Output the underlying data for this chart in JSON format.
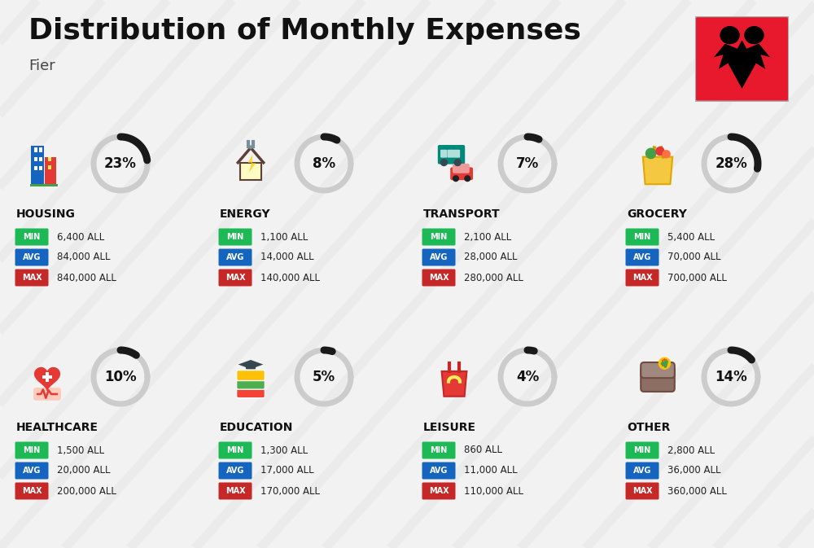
{
  "title": "Distribution of Monthly Expenses",
  "subtitle": "Fier",
  "background_color": "#f2f2f2",
  "categories": [
    {
      "name": "HOUSING",
      "percent": 23,
      "min_val": "6,400 ALL",
      "avg_val": "84,000 ALL",
      "max_val": "840,000 ALL",
      "row": 0,
      "col": 0
    },
    {
      "name": "ENERGY",
      "percent": 8,
      "min_val": "1,100 ALL",
      "avg_val": "14,000 ALL",
      "max_val": "140,000 ALL",
      "row": 0,
      "col": 1
    },
    {
      "name": "TRANSPORT",
      "percent": 7,
      "min_val": "2,100 ALL",
      "avg_val": "28,000 ALL",
      "max_val": "280,000 ALL",
      "row": 0,
      "col": 2
    },
    {
      "name": "GROCERY",
      "percent": 28,
      "min_val": "5,400 ALL",
      "avg_val": "70,000 ALL",
      "max_val": "700,000 ALL",
      "row": 0,
      "col": 3
    },
    {
      "name": "HEALTHCARE",
      "percent": 10,
      "min_val": "1,500 ALL",
      "avg_val": "20,000 ALL",
      "max_val": "200,000 ALL",
      "row": 1,
      "col": 0
    },
    {
      "name": "EDUCATION",
      "percent": 5,
      "min_val": "1,300 ALL",
      "avg_val": "17,000 ALL",
      "max_val": "170,000 ALL",
      "row": 1,
      "col": 1
    },
    {
      "name": "LEISURE",
      "percent": 4,
      "min_val": "860 ALL",
      "avg_val": "11,000 ALL",
      "max_val": "110,000 ALL",
      "row": 1,
      "col": 2
    },
    {
      "name": "OTHER",
      "percent": 14,
      "min_val": "2,800 ALL",
      "avg_val": "36,000 ALL",
      "max_val": "360,000 ALL",
      "row": 1,
      "col": 3
    }
  ],
  "color_min": "#1db954",
  "color_avg": "#1565c0",
  "color_max": "#c62828",
  "arc_color_filled": "#1a1a1a",
  "arc_color_empty": "#cccccc",
  "stripe_color": "#e0e0e0",
  "flag_red": "#e8192c"
}
